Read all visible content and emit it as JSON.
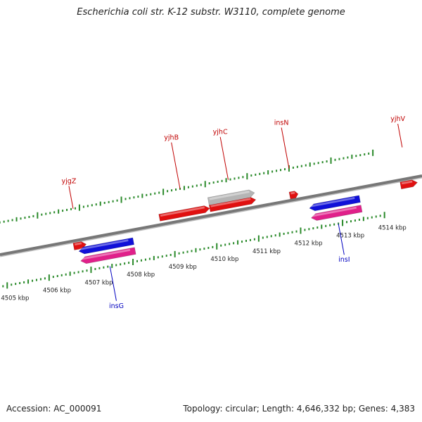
{
  "title": "Escherichia coli str. K-12 substr. W3110, complete genome",
  "footer": {
    "accession": "Accession: AC_000091",
    "summary": "Topology: circular; Length: 4,646,332 bp; Genes: 4,383"
  },
  "colors": {
    "forward_gene": "#e01010",
    "reverse_gene": "#1010d8",
    "pink_feature": "#e0208a",
    "pseudo_gene": "#b5b5b5",
    "forward_ticks": "#2a8a2a",
    "reverse_ticks": "#2a8a2a",
    "forward_label": "#c00000",
    "reverse_label": "#0000c0",
    "axis": "#777777"
  },
  "chart_data": {
    "type": "genome-map",
    "axis_unit": "kbp",
    "scale_labels": [
      {
        "kbp": 4505,
        "text": "4505 kbp"
      },
      {
        "kbp": 4506,
        "text": "4506 kbp"
      },
      {
        "kbp": 4507,
        "text": "4507 kbp"
      },
      {
        "kbp": 4508,
        "text": "4508 kbp"
      },
      {
        "kbp": 4509,
        "text": "4509 kbp"
      },
      {
        "kbp": 4510,
        "text": "4510 kbp"
      },
      {
        "kbp": 4511,
        "text": "4511 kbp"
      },
      {
        "kbp": 4512,
        "text": "4512 kbp"
      },
      {
        "kbp": 4513,
        "text": "4513 kbp"
      },
      {
        "kbp": 4514,
        "text": "4514 kbp"
      }
    ],
    "features": [
      {
        "label": "yjgZ",
        "strand": "+",
        "type": "gene",
        "start": 4506.7,
        "end": 4507.0
      },
      {
        "label": "yjhB",
        "strand": "+",
        "type": "gene",
        "start": 4508.8,
        "end": 4510.0
      },
      {
        "label": "yjhC",
        "strand": "+",
        "type": "gene",
        "start": 4510.0,
        "end": 4511.1
      },
      {
        "label": "",
        "strand": "+",
        "type": "pseudo",
        "start": 4510.0,
        "end": 4511.1
      },
      {
        "label": "insN",
        "strand": "+",
        "type": "gene",
        "start": 4511.9,
        "end": 4512.1
      },
      {
        "label": "yjhV",
        "strand": "+",
        "type": "gene",
        "start": 4514.5,
        "end": 4514.9
      },
      {
        "label": "insG",
        "strand": "-",
        "type": "gene",
        "start": 4506.8,
        "end": 4508.1
      },
      {
        "label": "",
        "strand": "-",
        "type": "mobile",
        "start": 4506.8,
        "end": 4508.1
      },
      {
        "label": "insI",
        "strand": "-",
        "type": "gene",
        "start": 4512.3,
        "end": 4513.5
      },
      {
        "label": "",
        "strand": "-",
        "type": "mobile",
        "start": 4512.3,
        "end": 4513.5
      }
    ]
  }
}
